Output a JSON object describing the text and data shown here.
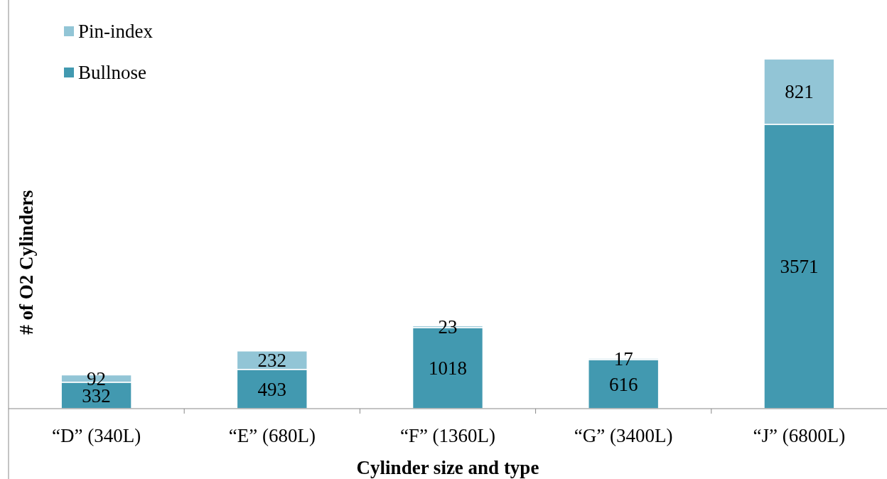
{
  "chart_data": {
    "type": "bar",
    "stacked": true,
    "xlabel": "Cylinder size and type",
    "ylabel": "# of O2 Cylinders",
    "categories": [
      "“D” (340L)",
      "“E” (680L)",
      "“F” (1360L)",
      "“G” (3400L)",
      "“J” (6800L)"
    ],
    "series": [
      {
        "name": "Bullnose",
        "color": "#4299b0",
        "values": [
          332,
          493,
          1018,
          616,
          3571
        ]
      },
      {
        "name": "Pin-index",
        "color": "#92c5d6",
        "values": [
          92,
          232,
          23,
          17,
          821
        ]
      }
    ],
    "data_labels": true,
    "legend": "top left"
  }
}
